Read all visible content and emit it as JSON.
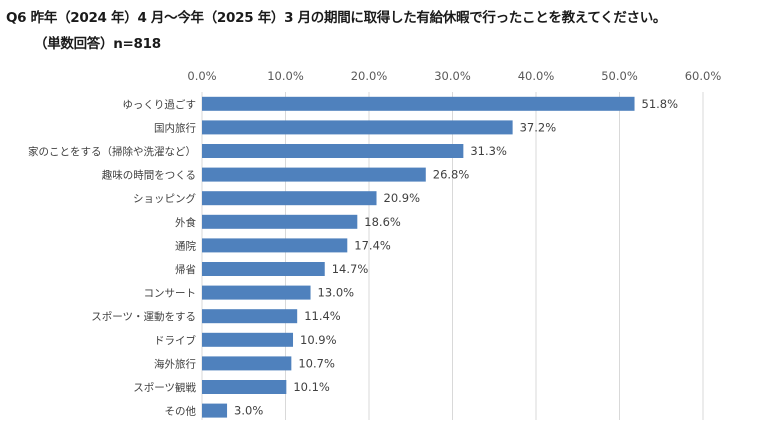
{
  "question": {
    "line1": "Q6 昨年（2024 年）4 月～今年（2025 年）3 月の期間に取得した有給休暇で行ったことを教えてください。",
    "line2": "（単数回答）n=818"
  },
  "chart_data": {
    "type": "bar",
    "orientation": "horizontal",
    "categories": [
      "ゆっくり過ごす",
      "国内旅行",
      "家のことをする（掃除や洗濯など）",
      "趣味の時間をつくる",
      "ショッピング",
      "外食",
      "通院",
      "帰省",
      "コンサート",
      "スポーツ・運動をする",
      "ドライブ",
      "海外旅行",
      "スポーツ観戦",
      "その他"
    ],
    "values": [
      51.8,
      37.2,
      31.3,
      26.8,
      20.9,
      18.6,
      17.4,
      14.7,
      13.0,
      11.4,
      10.9,
      10.7,
      10.1,
      3.0
    ],
    "data_labels": [
      "51.8%",
      "37.2%",
      "31.3%",
      "26.8%",
      "20.9%",
      "18.6%",
      "17.4%",
      "14.7%",
      "13.0%",
      "11.4%",
      "10.9%",
      "10.7%",
      "10.1%",
      "3.0%"
    ],
    "xlim": [
      0,
      60
    ],
    "x_ticks": [
      "0.0%",
      "10.0%",
      "20.0%",
      "30.0%",
      "40.0%",
      "50.0%",
      "60.0%"
    ],
    "x_axis_position": "top",
    "grid": true,
    "bar_color": "#4f81bd",
    "grid_color": "#d9d9d9"
  }
}
